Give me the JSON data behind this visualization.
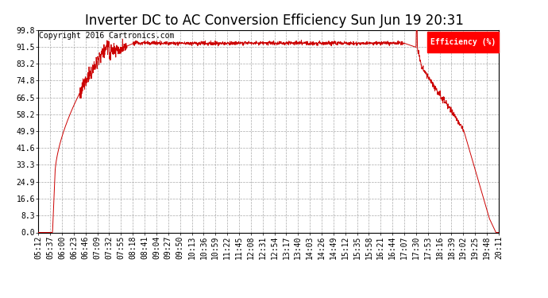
{
  "title": "Inverter DC to AC Conversion Efficiency Sun Jun 19 20:31",
  "copyright": "Copyright 2016 Cartronics.com",
  "legend_label": "Efficiency (%)",
  "legend_bg": "#FF0000",
  "legend_text_color": "#FFFFFF",
  "line_color": "#CC0000",
  "bg_color": "#FFFFFF",
  "plot_bg_color": "#FFFFFF",
  "grid_color": "#AAAAAA",
  "yticks": [
    0.0,
    8.3,
    16.6,
    24.9,
    33.3,
    41.6,
    49.9,
    58.2,
    66.5,
    74.8,
    83.2,
    91.5,
    99.8
  ],
  "xtick_labels": [
    "05:12",
    "05:37",
    "06:00",
    "06:23",
    "06:46",
    "07:09",
    "07:32",
    "07:55",
    "08:18",
    "08:41",
    "09:04",
    "09:27",
    "09:50",
    "10:13",
    "10:36",
    "10:59",
    "11:22",
    "11:45",
    "12:08",
    "12:31",
    "12:54",
    "13:17",
    "13:40",
    "14:03",
    "14:26",
    "14:49",
    "15:12",
    "15:35",
    "15:58",
    "16:21",
    "16:44",
    "17:07",
    "17:30",
    "17:53",
    "18:16",
    "18:39",
    "19:02",
    "19:25",
    "19:48",
    "20:11"
  ],
  "ymin": 0.0,
  "ymax": 99.8,
  "title_fontsize": 12,
  "axis_fontsize": 7,
  "copyright_fontsize": 7,
  "n_ticks": 40
}
